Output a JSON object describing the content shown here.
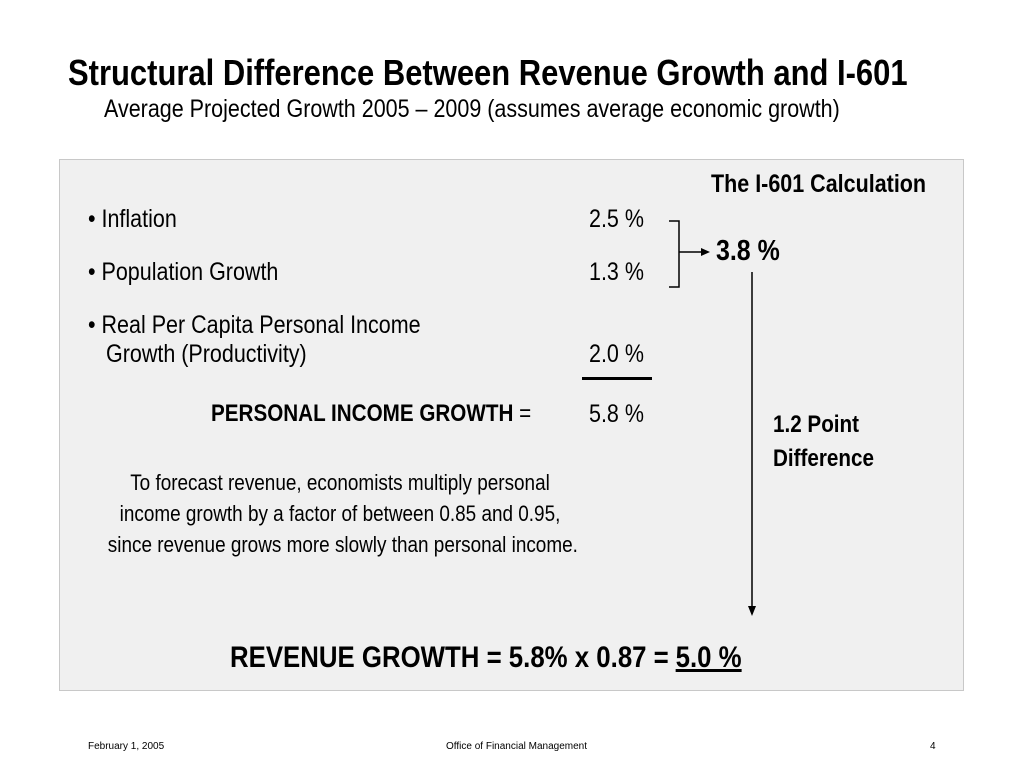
{
  "slide": {
    "title": "Structural Difference Between Revenue Growth and I-601",
    "subtitle": "Average Projected Growth 2005 – 2009 (assumes average economic growth)"
  },
  "calculation": {
    "heading": "The I-601 Calculation",
    "items": [
      {
        "label": "• Inflation",
        "value": "2.5 %"
      },
      {
        "label": "• Population Growth",
        "value": "1.3 %"
      },
      {
        "label_line1": "• Real Per Capita Personal Income",
        "label_line2": "Growth (Productivity)",
        "value": "2.0 %"
      }
    ],
    "personal_income_label": "PERSONAL INCOME GROWTH",
    "personal_income_equals": " =",
    "personal_income_value": "5.8 %",
    "i601_value": "3.8 %",
    "difference_line1": "1.2 Point",
    "difference_line2": "Difference"
  },
  "note": {
    "lines": [
      "To forecast revenue, economists multiply personal",
      "income growth by a factor of between 0.85 and 0.95,",
      "since revenue grows more slowly than personal income."
    ]
  },
  "revenue": {
    "formula": "REVENUE GROWTH = 5.8% x 0.87 =",
    "result": "5.0 %"
  },
  "footer": {
    "date": "February 1, 2005",
    "office": "Office of Financial Management",
    "page": "4"
  }
}
